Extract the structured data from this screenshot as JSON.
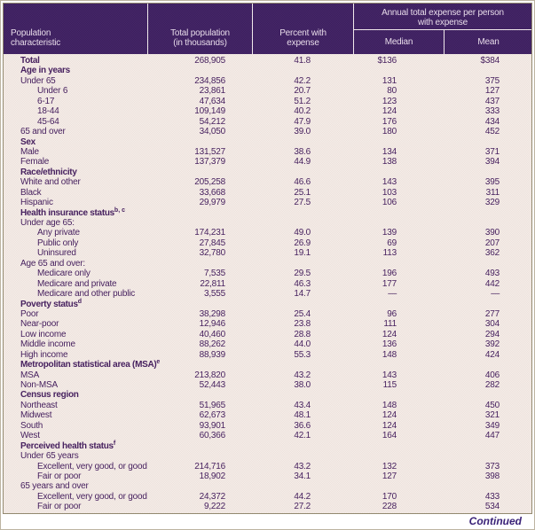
{
  "colors": {
    "header_bg": "#3c1f5c",
    "header_text": "#e7dbe9",
    "body_bg": "#ece1dc",
    "text": "#47215f"
  },
  "page": {
    "continued_label": "Continued"
  },
  "table": {
    "columns": {
      "population_characteristic": "Population\ncharacteristic",
      "total_population": "Total population\n(in thousands)",
      "percent_with_expense": "Percent with\nexpense",
      "annual_expense_span": "Annual total expense per person\nwith expense",
      "median": "Median",
      "mean": "Mean"
    },
    "rows": [
      {
        "label": "Total",
        "bold": true,
        "indent": 0,
        "values": [
          "268,905",
          "41.8",
          "$136",
          "$384"
        ]
      },
      {
        "label": "Age in years",
        "bold": true,
        "indent": 0,
        "values": null
      },
      {
        "label": "Under 65",
        "indent": 0,
        "values": [
          "234,856",
          "42.2",
          "131",
          "375"
        ]
      },
      {
        "label": "Under 6",
        "indent": 1,
        "values": [
          "23,861",
          "20.7",
          "80",
          "127"
        ]
      },
      {
        "label": "6-17",
        "indent": 1,
        "values": [
          "47,634",
          "51.2",
          "123",
          "437"
        ]
      },
      {
        "label": "18-44",
        "indent": 1,
        "values": [
          "109,149",
          "40.2",
          "124",
          "333"
        ]
      },
      {
        "label": "45-64",
        "indent": 1,
        "values": [
          "54,212",
          "47.9",
          "176",
          "434"
        ]
      },
      {
        "label": "65 and over",
        "indent": 0,
        "values": [
          "34,050",
          "39.0",
          "180",
          "452"
        ]
      },
      {
        "label": "Sex",
        "bold": true,
        "indent": 0,
        "values": null
      },
      {
        "label": "Male",
        "indent": 0,
        "values": [
          "131,527",
          "38.6",
          "134",
          "371"
        ]
      },
      {
        "label": "Female",
        "indent": 0,
        "values": [
          "137,379",
          "44.9",
          "138",
          "394"
        ]
      },
      {
        "label": "Race/ethnicity",
        "bold": true,
        "indent": 0,
        "values": null
      },
      {
        "label": "White and other",
        "indent": 0,
        "values": [
          "205,258",
          "46.6",
          "143",
          "395"
        ]
      },
      {
        "label": "Black",
        "indent": 0,
        "values": [
          "33,668",
          "25.1",
          "103",
          "311"
        ]
      },
      {
        "label": "Hispanic",
        "indent": 0,
        "values": [
          "29,979",
          "27.5",
          "106",
          "329"
        ]
      },
      {
        "label": "Health insurance status",
        "sup": "b, c",
        "bold": true,
        "indent": 0,
        "values": null
      },
      {
        "label": "Under age 65:",
        "indent": 0,
        "values": null
      },
      {
        "label": "Any private",
        "indent": 1,
        "values": [
          "174,231",
          "49.0",
          "139",
          "390"
        ]
      },
      {
        "label": "Public only",
        "indent": 1,
        "values": [
          "27,845",
          "26.9",
          "69",
          "207"
        ]
      },
      {
        "label": "Uninsured",
        "indent": 1,
        "values": [
          "32,780",
          "19.1",
          "113",
          "362"
        ]
      },
      {
        "label": "Age 65 and over:",
        "indent": 0,
        "values": null
      },
      {
        "label": "Medicare only",
        "indent": 1,
        "values": [
          "7,535",
          "29.5",
          "196",
          "493"
        ]
      },
      {
        "label": "Medicare and private",
        "indent": 1,
        "values": [
          "22,811",
          "46.3",
          "177",
          "442"
        ]
      },
      {
        "label": "Medicare and other public",
        "indent": 1,
        "values": [
          "3,555",
          "14.7",
          "—",
          "—"
        ]
      },
      {
        "label": "Poverty status",
        "sup": "d",
        "bold": true,
        "indent": 0,
        "values": null
      },
      {
        "label": "Poor",
        "indent": 0,
        "values": [
          "38,298",
          "25.4",
          "96",
          "277"
        ]
      },
      {
        "label": "Near-poor",
        "indent": 0,
        "values": [
          "12,946",
          "23.8",
          "111",
          "304"
        ]
      },
      {
        "label": "Low income",
        "indent": 0,
        "values": [
          "40,460",
          "28.8",
          "124",
          "294"
        ]
      },
      {
        "label": "Middle income",
        "indent": 0,
        "values": [
          "88,262",
          "44.0",
          "136",
          "392"
        ]
      },
      {
        "label": "High income",
        "indent": 0,
        "values": [
          "88,939",
          "55.3",
          "148",
          "424"
        ]
      },
      {
        "label": "Metropolitan statistical area (MSA)",
        "sup": "e",
        "bold": true,
        "indent": 0,
        "values": null
      },
      {
        "label": "MSA",
        "indent": 0,
        "values": [
          "213,820",
          "43.2",
          "143",
          "406"
        ]
      },
      {
        "label": "Non-MSA",
        "indent": 0,
        "values": [
          "52,443",
          "38.0",
          "115",
          "282"
        ]
      },
      {
        "label": "Census region",
        "bold": true,
        "indent": 0,
        "values": null
      },
      {
        "label": "Northeast",
        "indent": 0,
        "values": [
          "51,965",
          "43.4",
          "148",
          "450"
        ]
      },
      {
        "label": "Midwest",
        "indent": 0,
        "values": [
          "62,673",
          "48.1",
          "124",
          "321"
        ]
      },
      {
        "label": "South",
        "indent": 0,
        "values": [
          "93,901",
          "36.6",
          "124",
          "349"
        ]
      },
      {
        "label": "West",
        "indent": 0,
        "values": [
          "60,366",
          "42.1",
          "164",
          "447"
        ]
      },
      {
        "label": "Perceived health status",
        "sup": "f",
        "bold": true,
        "indent": 0,
        "values": null
      },
      {
        "label": "Under 65 years",
        "indent": 0,
        "values": null
      },
      {
        "label": "Excellent, very good, or good",
        "indent": 1,
        "values": [
          "214,716",
          "43.2",
          "132",
          "373"
        ]
      },
      {
        "label": "Fair or poor",
        "indent": 1,
        "values": [
          "18,902",
          "34.1",
          "127",
          "398"
        ]
      },
      {
        "label": "65 years and over",
        "indent": 0,
        "values": null
      },
      {
        "label": "Excellent, very good, or good",
        "indent": 1,
        "values": [
          "24,372",
          "44.2",
          "170",
          "433"
        ]
      },
      {
        "label": "Fair or poor",
        "indent": 1,
        "values": [
          "9,222",
          "27.2",
          "228",
          "534"
        ]
      }
    ]
  }
}
